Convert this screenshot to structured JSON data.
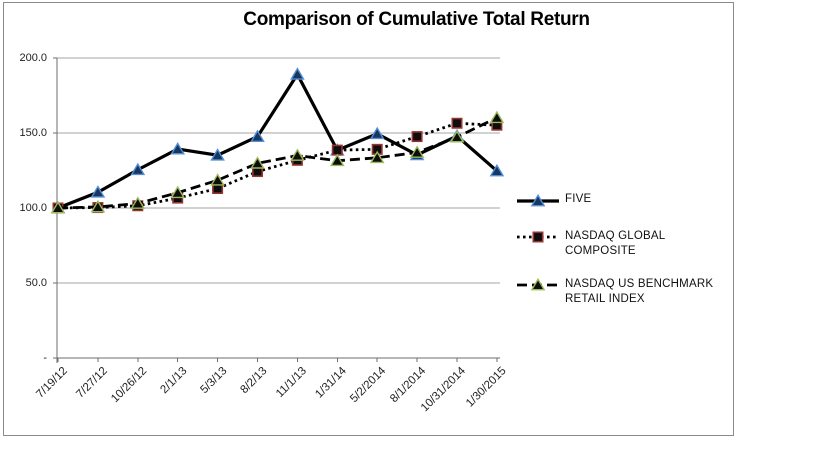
{
  "chart_data": {
    "type": "line",
    "title": "Comparison of Cumulative Total Return",
    "categories": [
      "7/19/12",
      "7/27/12",
      "10/26/12",
      "2/1/13",
      "5/3/13",
      "8/2/13",
      "11/1/13",
      "1/31/14",
      "5/2/2014",
      "8/1/2014",
      "10/31/2014",
      "1/30/2015"
    ],
    "y_axis": {
      "range": [
        0,
        200
      ],
      "ticks": [
        {
          "label": "200.0",
          "value": 200
        },
        {
          "label": "150.0",
          "value": 150
        },
        {
          "label": "100.0",
          "value": 100
        },
        {
          "label": "50.0",
          "value": 50
        },
        {
          "label": "-",
          "value": 0
        }
      ]
    },
    "grid": "horizontal",
    "legend_position": "right",
    "series": [
      {
        "name": "FIVE",
        "values": [
          100.0,
          110.5,
          125.5,
          139.3,
          135.2,
          147.6,
          189.1,
          138.5,
          149.5,
          135.4,
          148.0,
          124.7
        ],
        "line_style": "solid",
        "line_color": "#000000",
        "marker": "triangle",
        "marker_fill": "#17375E",
        "marker_stroke": "#558ED5"
      },
      {
        "name": "NASDAQ GLOBAL COMPOSITE",
        "values": [
          100.0,
          100.3,
          101.5,
          106.6,
          113.0,
          124.3,
          131.8,
          138.6,
          139.1,
          147.6,
          156.5,
          155.2
        ],
        "line_style": "dotted",
        "line_color": "#000000",
        "marker": "square",
        "marker_fill": "#0D0D0D",
        "marker_stroke": "#943634"
      },
      {
        "name": "NASDAQ US BENCHMARK RETAIL INDEX",
        "values": [
          100.0,
          100.7,
          103.0,
          110.2,
          118.5,
          129.8,
          135.0,
          131.5,
          133.5,
          137.0,
          147.3,
          160.2
        ],
        "line_style": "dashed",
        "line_color": "#000000",
        "marker": "triangle",
        "marker_fill": "#0D0D0D",
        "marker_stroke": "#9BBB59"
      }
    ]
  },
  "colors": {
    "background": "#FFFFFF",
    "frame_border": "#8A8A8A",
    "gridline": "#A6A6A6",
    "axis": "#6E6E6E",
    "text": "#1F1F1F"
  }
}
